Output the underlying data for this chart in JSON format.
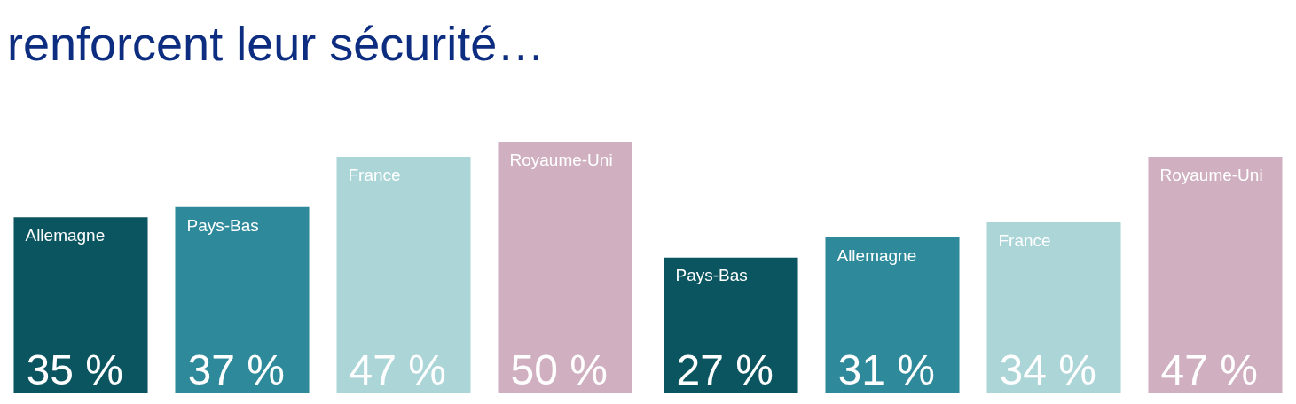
{
  "chart_data": [
    {
      "type": "bar",
      "title": "renforcent leur sécurité…",
      "categories": [
        "Allemagne",
        "Pays-Bas",
        "France",
        "Royaume-Uni"
      ],
      "values": [
        35,
        37,
        47,
        50
      ],
      "value_labels": [
        "35 %",
        "37 %",
        "47 %",
        "50 %"
      ],
      "colors": [
        "#0b5560",
        "#2e8a9b",
        "#acd5d8",
        "#d0b0c0"
      ]
    },
    {
      "type": "bar",
      "categories": [
        "Pays-Bas",
        "Allemagne",
        "France",
        "Royaume-Uni"
      ],
      "values": [
        27,
        31,
        34,
        47
      ],
      "value_labels": [
        "27 %",
        "31 %",
        "34 %",
        "47 %"
      ],
      "colors": [
        "#0b5560",
        "#2e8a9b",
        "#acd5d8",
        "#d0b0c0"
      ]
    }
  ]
}
